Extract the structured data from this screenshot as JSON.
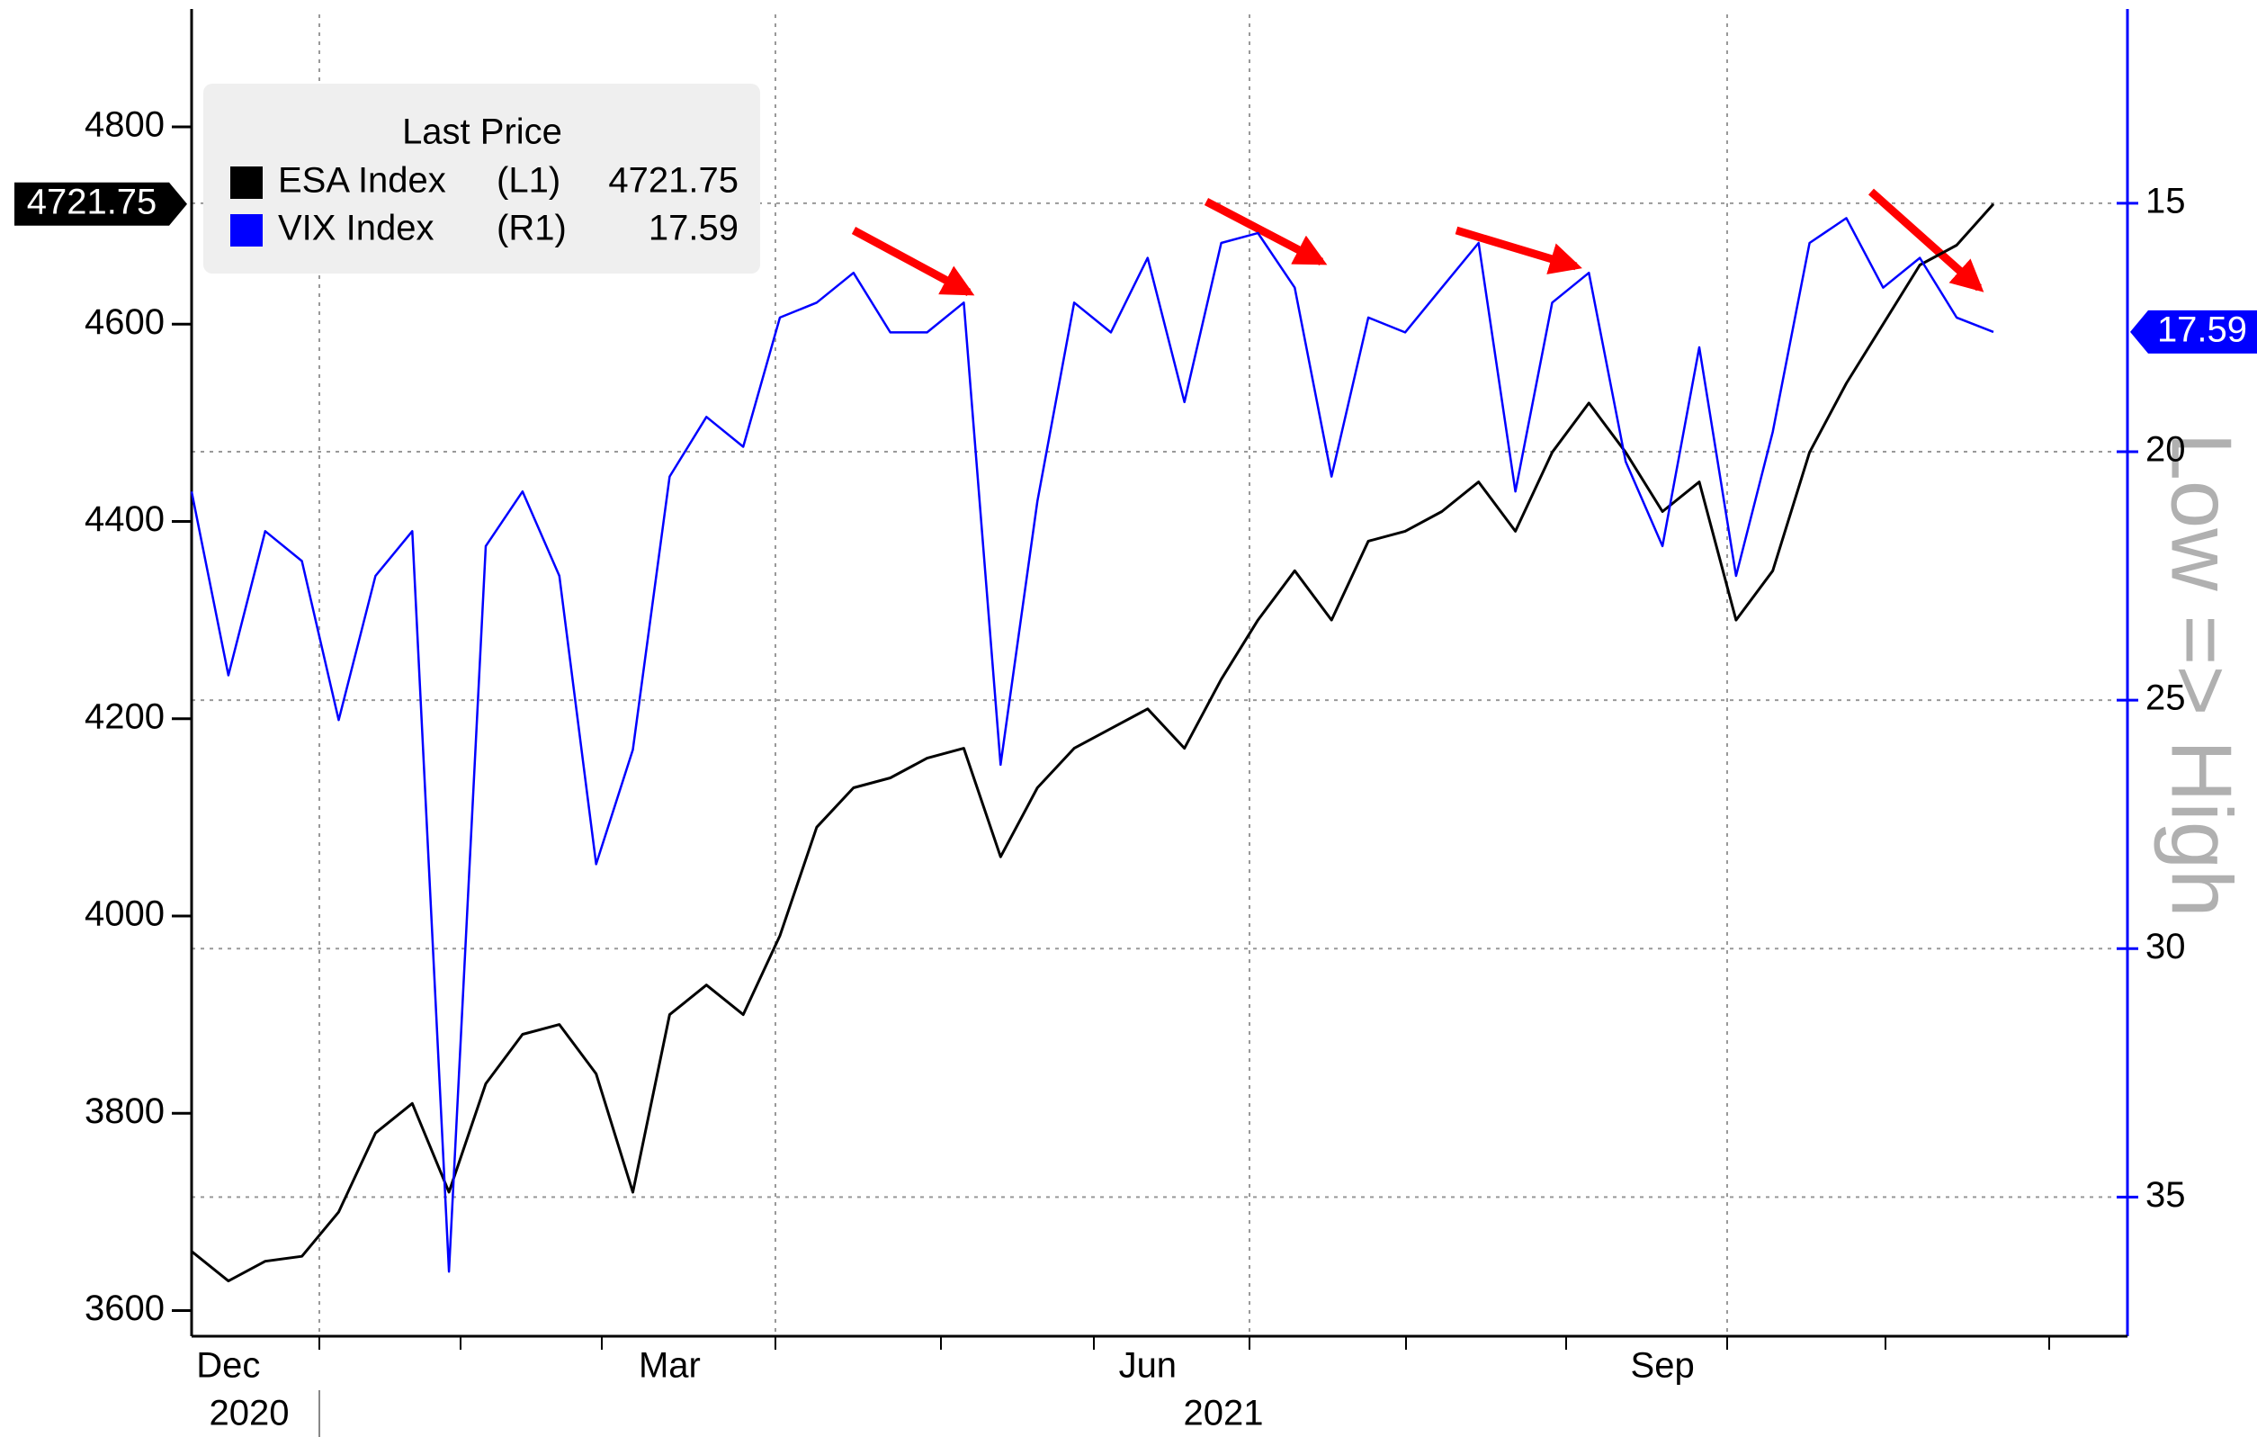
{
  "chart_data": {
    "type": "line",
    "legend_title": "Last Price",
    "categories": [
      null,
      "Dec",
      null,
      null,
      null,
      null,
      null,
      null,
      null,
      null,
      null,
      null,
      null,
      "Mar",
      null,
      null,
      null,
      null,
      null,
      null,
      null,
      null,
      null,
      null,
      null,
      null,
      "Jun",
      null,
      null,
      null,
      null,
      null,
      null,
      null,
      null,
      null,
      null,
      null,
      null,
      null,
      "Sep",
      null,
      null,
      null,
      null,
      null,
      null,
      null,
      null,
      null
    ],
    "x_group_labels": [
      "2020",
      "2021"
    ],
    "series": [
      {
        "name": "ESA Index",
        "axis_label": "(L1)",
        "color": "#000000",
        "axis": "y",
        "values": [
          3660,
          3630,
          3650,
          3655,
          3700,
          3780,
          3810,
          3720,
          3830,
          3880,
          3890,
          3840,
          3720,
          3900,
          3930,
          3900,
          3980,
          4090,
          4130,
          4140,
          4160,
          4170,
          4060,
          4130,
          4170,
          4190,
          4210,
          4170,
          4240,
          4300,
          4350,
          4300,
          4380,
          4390,
          4410,
          4440,
          4390,
          4470,
          4520,
          4470,
          4410,
          4440,
          4300,
          4350,
          4470,
          4540,
          4600,
          4660,
          4680,
          4721.75
        ]
      },
      {
        "name": "VIX Index",
        "axis_label": "(R1)",
        "color": "#0000ff",
        "axis": "y2",
        "values": [
          20.8,
          24.5,
          21.6,
          22.2,
          25.4,
          22.5,
          21.6,
          36.5,
          21.9,
          20.8,
          22.5,
          28.3,
          26,
          20.5,
          19.3,
          19.9,
          17.3,
          17,
          16.4,
          17.6,
          17.6,
          17,
          26.3,
          21,
          17,
          17.6,
          16.1,
          19,
          15.8,
          15.6,
          16.7,
          20.5,
          17.3,
          17.6,
          16.7,
          15.8,
          20.8,
          17,
          16.4,
          20.2,
          21.9,
          17.9,
          22.5,
          19.6,
          15.8,
          15.3,
          16.7,
          16.1,
          17.3,
          17.59
        ]
      }
    ],
    "ylim": [
      3574,
      4914
    ],
    "yticks": [
      3600,
      3800,
      4000,
      4200,
      4400,
      4600,
      4800
    ],
    "y2lim": [
      11.2,
      37.8
    ],
    "y2_inverted": true,
    "y2ticks": [
      15,
      20,
      25,
      30,
      35
    ],
    "grid": true,
    "annotations": [
      "Low => High"
    ]
  }
}
